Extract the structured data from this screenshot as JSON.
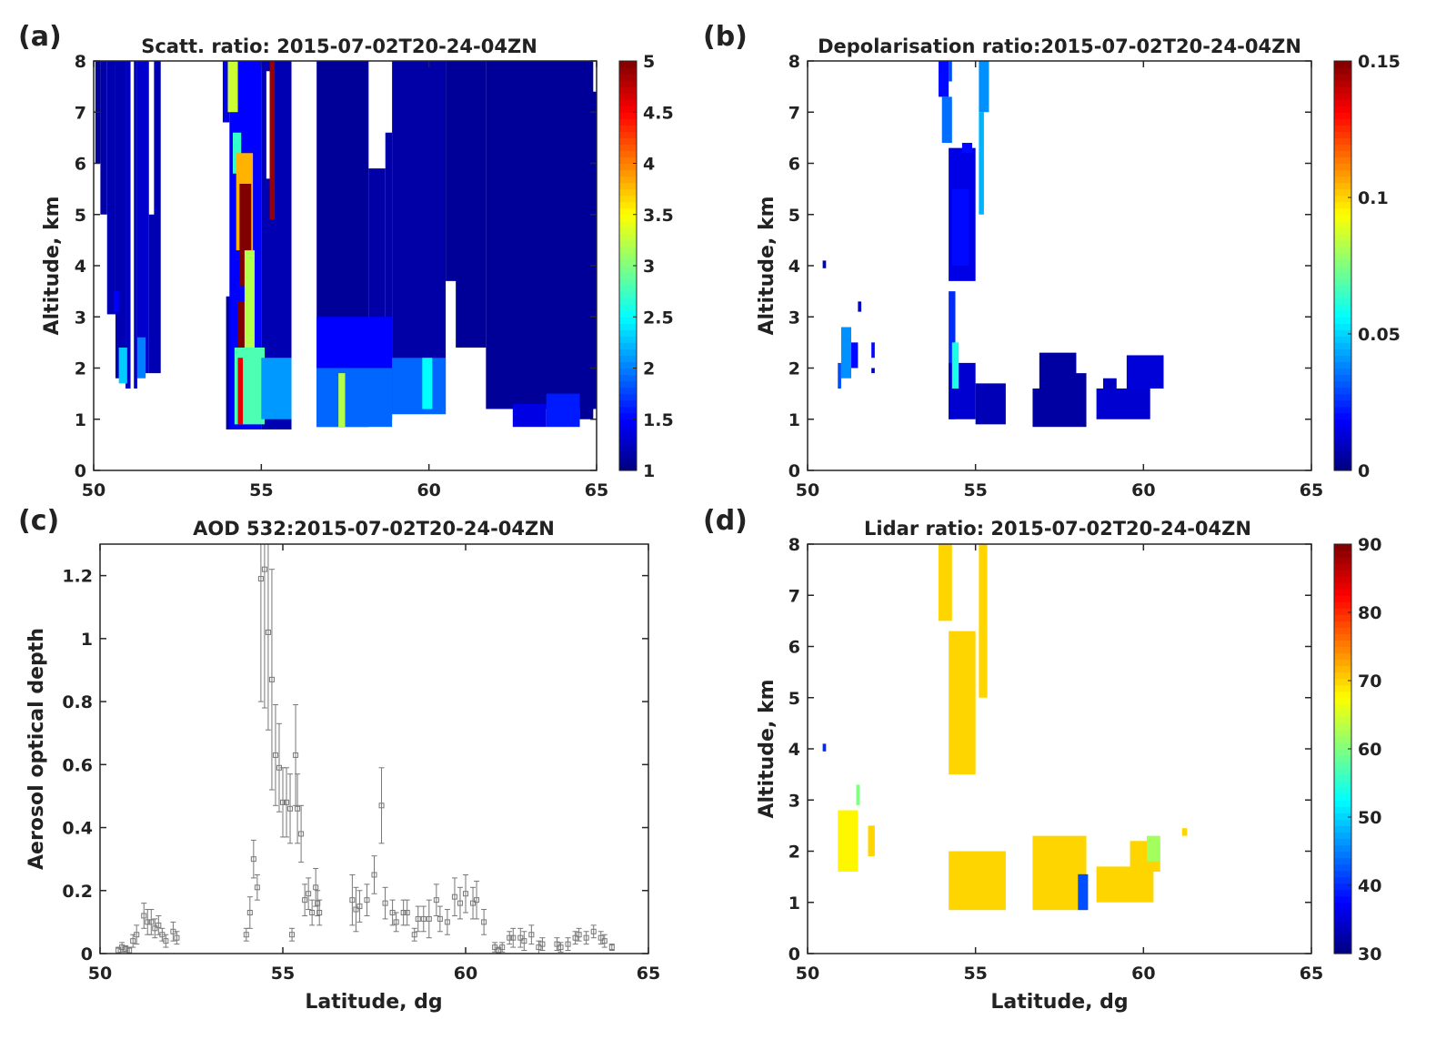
{
  "chart_data": [
    {
      "id": "a",
      "panel_label": "(a)",
      "type": "heatmap",
      "title": "Scatt. ratio: 2015-07-02T20-24-04ZN",
      "xlabel": "",
      "ylabel": "Altitude, km",
      "xlim": [
        50,
        65
      ],
      "ylim": [
        0,
        8
      ],
      "xticks": [
        50,
        55,
        60,
        65
      ],
      "yticks": [
        0,
        1,
        2,
        3,
        4,
        5,
        6,
        7,
        8
      ],
      "colorbar": {
        "range": [
          1,
          5
        ],
        "ticks": [
          1,
          1.5,
          2,
          2.5,
          3,
          3.5,
          4,
          4.5,
          5
        ],
        "colormap": "jet"
      },
      "cells_format": [
        "lat_min",
        "lat_max",
        "alt_min",
        "alt_max",
        "value (null = no data)"
      ],
      "cells": [
        [
          50.05,
          50.2,
          6.0,
          8,
          1.1
        ],
        [
          50.2,
          50.4,
          5.0,
          8,
          1.15
        ],
        [
          50.4,
          50.65,
          3.05,
          8,
          1.2
        ],
        [
          50.65,
          50.95,
          1.8,
          8,
          1.2
        ],
        [
          50.95,
          51.3,
          1.6,
          8,
          1.25
        ],
        [
          51.3,
          51.65,
          1.9,
          8,
          1.3
        ],
        [
          51.65,
          52.0,
          1.9,
          8,
          1.2
        ],
        [
          51.1,
          51.2,
          1.5,
          8,
          null
        ],
        [
          51.65,
          51.8,
          5.0,
          8,
          null
        ],
        [
          50.75,
          51.0,
          1.7,
          2.4,
          2.3
        ],
        [
          51.3,
          51.55,
          1.8,
          2.6,
          2.0
        ],
        [
          50.6,
          50.75,
          3.1,
          3.5,
          1.5
        ],
        [
          53.85,
          54.05,
          6.8,
          8,
          1.4
        ],
        [
          53.95,
          54.1,
          0.8,
          3.4,
          1.15
        ],
        [
          54.05,
          55.0,
          0.8,
          8,
          1.5
        ],
        [
          55.0,
          55.9,
          0.8,
          8,
          1.2
        ],
        [
          54.0,
          54.3,
          7.0,
          8,
          3.3
        ],
        [
          54.15,
          54.4,
          5.8,
          6.6,
          2.7
        ],
        [
          54.25,
          54.75,
          4.3,
          6.2,
          3.8
        ],
        [
          54.35,
          54.7,
          3.6,
          5.6,
          5
        ],
        [
          54.3,
          54.5,
          2.4,
          3.3,
          5
        ],
        [
          54.5,
          54.8,
          2.4,
          4.3,
          3.2
        ],
        [
          54.2,
          55.1,
          0.9,
          2.4,
          2.8
        ],
        [
          54.3,
          54.45,
          0.9,
          2.2,
          4.6
        ],
        [
          55.0,
          55.9,
          1.0,
          2.2,
          2.1
        ],
        [
          55.15,
          55.25,
          5.7,
          7.8,
          null
        ],
        [
          55.25,
          55.4,
          4.9,
          8,
          4.9
        ],
        [
          56.65,
          58.2,
          0.85,
          8,
          1.1
        ],
        [
          58.2,
          58.7,
          1.0,
          5.9,
          1.15
        ],
        [
          58.7,
          58.9,
          1.0,
          6.6,
          1.15
        ],
        [
          56.65,
          58.9,
          2.0,
          3.0,
          1.5
        ],
        [
          56.65,
          58.9,
          0.85,
          2.0,
          1.9
        ],
        [
          57.3,
          57.5,
          0.85,
          1.9,
          3.2
        ],
        [
          58.9,
          60.5,
          1.1,
          8,
          1.15
        ],
        [
          58.9,
          60.5,
          1.1,
          2.2,
          1.9
        ],
        [
          59.8,
          60.1,
          1.2,
          2.2,
          2.5
        ],
        [
          60.5,
          61.7,
          2.4,
          8,
          1.1
        ],
        [
          60.5,
          60.8,
          2.4,
          3.7,
          null
        ],
        [
          61.7,
          65,
          1.2,
          8,
          1.1
        ],
        [
          62.5,
          63.5,
          0.85,
          1.3,
          1.4
        ],
        [
          63.5,
          64.5,
          0.85,
          1.5,
          1.6
        ],
        [
          64.5,
          64.9,
          1.0,
          1.5,
          1.1
        ],
        [
          64.9,
          65,
          7.4,
          8,
          null
        ]
      ]
    },
    {
      "id": "b",
      "panel_label": "(b)",
      "type": "heatmap",
      "title": "Depolarisation ratio:2015-07-02T20-24-04ZN",
      "xlabel": "",
      "ylabel": "Altitude, km",
      "xlim": [
        50,
        65
      ],
      "ylim": [
        0,
        8
      ],
      "xticks": [
        50,
        55,
        60,
        65
      ],
      "yticks": [
        0,
        1,
        2,
        3,
        4,
        5,
        6,
        7,
        8
      ],
      "colorbar": {
        "range": [
          0,
          0.15
        ],
        "ticks": [
          0,
          0.05,
          0.1,
          0.15
        ],
        "colormap": "jet"
      },
      "cells_format": [
        "lat_min",
        "lat_max",
        "alt_min",
        "alt_max",
        "value"
      ],
      "cells": [
        [
          50.45,
          50.55,
          3.95,
          4.1,
          0.01
        ],
        [
          50.9,
          51.0,
          1.6,
          2.1,
          0.03
        ],
        [
          51.0,
          51.3,
          1.8,
          2.8,
          0.04
        ],
        [
          51.3,
          51.5,
          2.0,
          2.5,
          0.02
        ],
        [
          51.5,
          51.6,
          3.1,
          3.3,
          0.01
        ],
        [
          51.9,
          52.0,
          2.2,
          2.5,
          0.02
        ],
        [
          51.9,
          52.0,
          1.9,
          2.0,
          0.01
        ],
        [
          53.9,
          54.2,
          7.3,
          8,
          0.02
        ],
        [
          54.2,
          54.3,
          7.6,
          8,
          0.03
        ],
        [
          54.0,
          54.3,
          6.4,
          7.3,
          0.035
        ],
        [
          54.2,
          55.0,
          3.7,
          6.3,
          0.015
        ],
        [
          54.3,
          54.8,
          4.0,
          5.5,
          0.02
        ],
        [
          54.6,
          54.9,
          6.2,
          6.4,
          0.02
        ],
        [
          55.1,
          55.4,
          7.0,
          8,
          0.04
        ],
        [
          55.1,
          55.25,
          5.0,
          7,
          0.045
        ],
        [
          54.2,
          54.4,
          1.0,
          3.5,
          0.025
        ],
        [
          54.2,
          55.0,
          1.0,
          2.1,
          0.012
        ],
        [
          55.0,
          55.9,
          0.9,
          1.7,
          0.008
        ],
        [
          54.3,
          54.5,
          1.6,
          2.5,
          0.06
        ],
        [
          56.7,
          58.3,
          0.85,
          1.6,
          0.005
        ],
        [
          56.9,
          58.0,
          1.6,
          2.3,
          0.005
        ],
        [
          57.8,
          58.3,
          1.6,
          1.9,
          0.005
        ],
        [
          58.6,
          60.2,
          1.0,
          1.6,
          0.012
        ],
        [
          59.5,
          60.6,
          1.6,
          2.25,
          0.013
        ],
        [
          58.8,
          59.2,
          1.6,
          1.8,
          0.01
        ]
      ]
    },
    {
      "id": "c",
      "panel_label": "(c)",
      "type": "scatter",
      "title": "AOD 532:2015-07-02T20-24-04ZN",
      "xlabel": "Latitude, dg",
      "ylabel": "Aerosol optical depth",
      "xlim": [
        50,
        65
      ],
      "ylim": [
        0,
        1.3
      ],
      "xticks": [
        50,
        55,
        60,
        65
      ],
      "yticks": [
        0,
        0.2,
        0.4,
        0.6,
        0.8,
        1,
        1.2
      ],
      "marker_color": "#777777",
      "points_format": [
        "latitude",
        "aod",
        "error"
      ],
      "points": [
        [
          50.5,
          0.01,
          0.01
        ],
        [
          50.6,
          0.02,
          0.015
        ],
        [
          50.7,
          0.015,
          0.01
        ],
        [
          50.8,
          0.01,
          0.01
        ],
        [
          50.9,
          0.04,
          0.02
        ],
        [
          51.0,
          0.06,
          0.03
        ],
        [
          51.2,
          0.12,
          0.04
        ],
        [
          51.3,
          0.1,
          0.04
        ],
        [
          51.4,
          0.1,
          0.04
        ],
        [
          51.5,
          0.08,
          0.03
        ],
        [
          51.6,
          0.09,
          0.03
        ],
        [
          51.7,
          0.06,
          0.02
        ],
        [
          51.8,
          0.04,
          0.02
        ],
        [
          52.0,
          0.07,
          0.03
        ],
        [
          52.1,
          0.05,
          0.02
        ],
        [
          54.0,
          0.06,
          0.02
        ],
        [
          54.1,
          0.13,
          0.05
        ],
        [
          54.2,
          0.3,
          0.06
        ],
        [
          54.3,
          0.21,
          0.04
        ],
        [
          54.4,
          1.19,
          0.39
        ],
        [
          54.5,
          1.22,
          0.44
        ],
        [
          54.6,
          1.02,
          0.31
        ],
        [
          54.7,
          0.87,
          0.35
        ],
        [
          54.8,
          0.63,
          0.16
        ],
        [
          54.9,
          0.59,
          0.14
        ],
        [
          55.0,
          0.48,
          0.11
        ],
        [
          55.1,
          0.48,
          0.11
        ],
        [
          55.2,
          0.46,
          0.11
        ],
        [
          55.25,
          0.06,
          0.02
        ],
        [
          55.35,
          0.63,
          0.16
        ],
        [
          55.4,
          0.46,
          0.11
        ],
        [
          55.5,
          0.38,
          0.09
        ],
        [
          55.6,
          0.17,
          0.05
        ],
        [
          55.7,
          0.19,
          0.05
        ],
        [
          55.8,
          0.13,
          0.04
        ],
        [
          55.9,
          0.21,
          0.06
        ],
        [
          55.95,
          0.16,
          0.04
        ],
        [
          56.0,
          0.13,
          0.04
        ],
        [
          56.9,
          0.17,
          0.08
        ],
        [
          57.0,
          0.14,
          0.07
        ],
        [
          57.1,
          0.15,
          0.05
        ],
        [
          57.3,
          0.17,
          0.05
        ],
        [
          57.5,
          0.25,
          0.06
        ],
        [
          57.7,
          0.47,
          0.12
        ],
        [
          57.8,
          0.16,
          0.05
        ],
        [
          58.0,
          0.13,
          0.04
        ],
        [
          58.1,
          0.1,
          0.03
        ],
        [
          58.3,
          0.13,
          0.04
        ],
        [
          58.4,
          0.13,
          0.04
        ],
        [
          58.6,
          0.06,
          0.02
        ],
        [
          58.7,
          0.11,
          0.04
        ],
        [
          58.85,
          0.11,
          0.04
        ],
        [
          59.0,
          0.11,
          0.06
        ],
        [
          59.2,
          0.17,
          0.05
        ],
        [
          59.3,
          0.11,
          0.04
        ],
        [
          59.5,
          0.1,
          0.04
        ],
        [
          59.7,
          0.18,
          0.06
        ],
        [
          59.85,
          0.16,
          0.05
        ],
        [
          60.0,
          0.19,
          0.06
        ],
        [
          60.2,
          0.16,
          0.05
        ],
        [
          60.3,
          0.17,
          0.06
        ],
        [
          60.5,
          0.1,
          0.04
        ],
        [
          60.8,
          0.02,
          0.015
        ],
        [
          60.9,
          0.01,
          0.01
        ],
        [
          61.0,
          0.02,
          0.015
        ],
        [
          61.2,
          0.05,
          0.02
        ],
        [
          61.3,
          0.05,
          0.03
        ],
        [
          61.5,
          0.05,
          0.03
        ],
        [
          61.6,
          0.04,
          0.03
        ],
        [
          61.8,
          0.06,
          0.03
        ],
        [
          62.0,
          0.02,
          0.02
        ],
        [
          62.1,
          0.03,
          0.02
        ],
        [
          62.5,
          0.03,
          0.02
        ],
        [
          62.6,
          0.02,
          0.015
        ],
        [
          62.8,
          0.03,
          0.02
        ],
        [
          63.0,
          0.05,
          0.02
        ],
        [
          63.1,
          0.06,
          0.02
        ],
        [
          63.3,
          0.05,
          0.02
        ],
        [
          63.5,
          0.07,
          0.02
        ],
        [
          63.7,
          0.05,
          0.02
        ],
        [
          63.8,
          0.04,
          0.02
        ],
        [
          64.0,
          0.02,
          0.01
        ]
      ]
    },
    {
      "id": "d",
      "panel_label": "(d)",
      "type": "heatmap",
      "title": "Lidar ratio: 2015-07-02T20-24-04ZN",
      "xlabel": "Latitude, dg",
      "ylabel": "Altitude, km",
      "xlim": [
        50,
        65
      ],
      "ylim": [
        0,
        8
      ],
      "xticks": [
        50,
        55,
        60,
        65
      ],
      "yticks": [
        0,
        1,
        2,
        3,
        4,
        5,
        6,
        7,
        8
      ],
      "colorbar": {
        "range": [
          30,
          90
        ],
        "ticks": [
          30,
          40,
          50,
          60,
          70,
          80,
          90
        ],
        "colormap": "jet"
      },
      "cells_format": [
        "lat_min",
        "lat_max",
        "alt_min",
        "alt_max",
        "value"
      ],
      "cells": [
        [
          50.45,
          50.55,
          3.95,
          4.1,
          40
        ],
        [
          50.9,
          51.5,
          1.6,
          2.8,
          68
        ],
        [
          51.45,
          51.55,
          2.9,
          3.3,
          60
        ],
        [
          51.8,
          52.0,
          1.9,
          2.5,
          70
        ],
        [
          53.9,
          54.3,
          6.5,
          8,
          70
        ],
        [
          54.2,
          55.0,
          3.5,
          6.3,
          70
        ],
        [
          55.1,
          55.35,
          5.0,
          8,
          70
        ],
        [
          54.2,
          55.9,
          0.85,
          2.0,
          70
        ],
        [
          56.7,
          58.3,
          0.85,
          2.3,
          70
        ],
        [
          58.05,
          58.35,
          0.85,
          1.55,
          42
        ],
        [
          58.6,
          60.3,
          1.0,
          1.7,
          70
        ],
        [
          59.6,
          60.5,
          1.6,
          2.2,
          70
        ],
        [
          60.1,
          60.5,
          1.8,
          2.3,
          62
        ],
        [
          61.15,
          61.3,
          2.3,
          2.45,
          70
        ]
      ]
    }
  ]
}
